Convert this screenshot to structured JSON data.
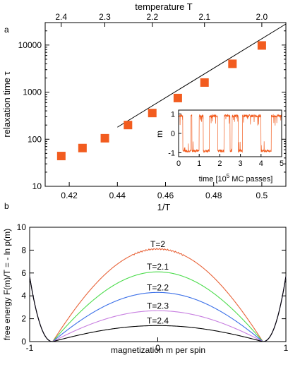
{
  "chart_data": [
    {
      "panel": "a",
      "type": "scatter",
      "title": "",
      "xlabel": "1/T",
      "ylabel": "relaxation time τ",
      "top_axis_label": "temperature T",
      "top_axis_ticks": [
        2.4,
        2.3,
        2.2,
        2.1,
        2.0
      ],
      "xlim": [
        0.41,
        0.51
      ],
      "ylim": [
        10,
        30000
      ],
      "y_scale": "log",
      "x_ticks": [
        0.42,
        0.44,
        0.46,
        0.48,
        0.5
      ],
      "y_ticks": [
        10,
        100,
        1000,
        10000
      ],
      "series": [
        {
          "marker": "square",
          "color": "#f25c1f",
          "x": [
            0.4167,
            0.4255,
            0.4348,
            0.4444,
            0.4545,
            0.4651,
            0.4762,
            0.4878,
            0.5
          ],
          "y": [
            44,
            65,
            105,
            200,
            360,
            750,
            1600,
            4000,
            9800
          ]
        },
        {
          "type": "line",
          "color": "#000000",
          "x": [
            0.44,
            0.51
          ],
          "y": [
            180,
            28000
          ]
        }
      ],
      "inset": {
        "type": "line",
        "xlabel": "time [10",
        "xlabel_exp": "5",
        "xlabel_tail": " MC passes]",
        "ylabel": "m",
        "xlim": [
          0,
          5
        ],
        "ylim": [
          -1.2,
          1.2
        ],
        "x_ticks": [
          0,
          1,
          2,
          3,
          4,
          5
        ],
        "y_ticks": [
          -1,
          0,
          1
        ],
        "color": "#f25c1f",
        "switch_times": [
          0.2,
          0.6,
          0.65,
          1.0,
          1.2,
          1.5,
          1.9,
          2.2,
          2.5,
          2.6,
          2.9,
          3.1,
          4.0,
          4.5
        ],
        "start_value": 0.9,
        "duration": 5.0
      }
    },
    {
      "panel": "b",
      "type": "line",
      "title": "",
      "xlabel": "magnetization m per spin",
      "ylabel": "free energy F(m)/T = - ln p(m)",
      "xlim": [
        -1,
        1
      ],
      "ylim": [
        0,
        10
      ],
      "x_ticks": [
        -1,
        0,
        1
      ],
      "y_ticks": [
        0,
        2,
        4,
        6,
        8,
        10
      ],
      "series": [
        {
          "name": "T=2",
          "color": "#e8643a",
          "peak": 8.1
        },
        {
          "name": "T=2.1",
          "color": "#4ddc4d",
          "peak": 6.1
        },
        {
          "name": "T=2.2",
          "color": "#3a6fe8",
          "peak": 4.3
        },
        {
          "name": "T=2.3",
          "color": "#c77ee0",
          "peak": 2.7
        },
        {
          "name": "T=2.4",
          "color": "#000000",
          "peak": 1.4
        }
      ]
    }
  ]
}
